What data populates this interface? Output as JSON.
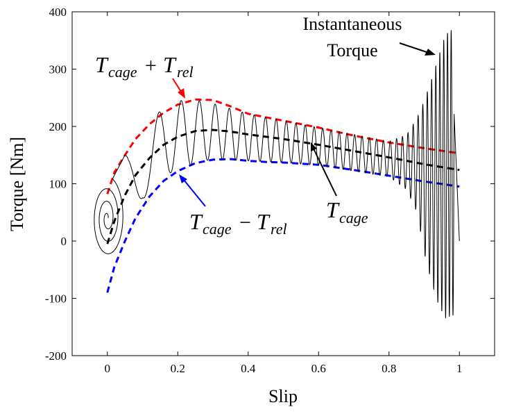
{
  "chart_data": {
    "type": "line",
    "title": "",
    "xlabel": "Slip",
    "ylabel": "Torque [Nm]",
    "xlim": [
      -0.1,
      1.1
    ],
    "ylim": [
      -200,
      400
    ],
    "xticks": [
      "0",
      "0.2",
      "0.4",
      "0.6",
      "0.8",
      "1"
    ],
    "yticks": [
      "-200",
      "-100",
      "0",
      "100",
      "200",
      "300",
      "400"
    ],
    "grid": false,
    "legend": "none",
    "series": [
      {
        "id": "cage_plus_rel",
        "color": "#ff0000",
        "style": "dashed",
        "x": [
          0,
          0.02,
          0.05,
          0.08,
          0.12,
          0.16,
          0.2,
          0.25,
          0.3,
          0.35,
          0.4,
          0.45,
          0.5,
          0.6,
          0.7,
          0.8,
          0.9,
          1.0
        ],
        "y": [
          82,
          120,
          150,
          178,
          204,
          224,
          238,
          247,
          246,
          235,
          222,
          216,
          210,
          198,
          184,
          172,
          162,
          153
        ]
      },
      {
        "id": "cage",
        "color": "#000000",
        "style": "dashed",
        "x": [
          0,
          0.02,
          0.05,
          0.08,
          0.12,
          0.16,
          0.2,
          0.25,
          0.3,
          0.35,
          0.4,
          0.45,
          0.5,
          0.6,
          0.7,
          0.8,
          0.9,
          1.0
        ],
        "y": [
          -5,
          35,
          80,
          115,
          145,
          168,
          182,
          192,
          194,
          191,
          186,
          182,
          178,
          168,
          157,
          146,
          134,
          124
        ]
      },
      {
        "id": "cage_minus_rel",
        "color": "#0000ff",
        "style": "dashed",
        "x": [
          0,
          0.02,
          0.05,
          0.08,
          0.12,
          0.16,
          0.2,
          0.25,
          0.3,
          0.35,
          0.4,
          0.45,
          0.5,
          0.6,
          0.7,
          0.8,
          0.9,
          1.0
        ],
        "y": [
          -90,
          -45,
          0,
          40,
          78,
          105,
          122,
          136,
          142,
          143,
          140,
          138,
          137,
          133,
          124,
          114,
          104,
          95
        ]
      },
      {
        "id": "instantaneous",
        "color": "#000000",
        "style": "solid",
        "envelope_upper": {
          "x": [
            0.06,
            0.1,
            0.15,
            0.2,
            0.25,
            0.3,
            0.4,
            0.5,
            0.6,
            0.7,
            0.8,
            0.85,
            0.88,
            0.9,
            0.92,
            0.94,
            0.96,
            0.98
          ],
          "y": [
            150,
            178,
            228,
            245,
            246,
            240,
            222,
            210,
            198,
            186,
            174,
            185,
            215,
            245,
            280,
            320,
            360,
            370
          ]
        },
        "envelope_lower": {
          "x": [
            0.06,
            0.1,
            0.15,
            0.2,
            0.25,
            0.3,
            0.4,
            0.5,
            0.6,
            0.7,
            0.8,
            0.85,
            0.88,
            0.9,
            0.92,
            0.94,
            0.96,
            0.98
          ],
          "y": [
            -15,
            72,
            110,
            125,
            136,
            143,
            140,
            137,
            132,
            122,
            112,
            90,
            50,
            -20,
            -70,
            -110,
            -135,
            -130
          ]
        },
        "start_spiral_center": [
          0.0,
          40
        ]
      }
    ],
    "annotations": {
      "instantaneous": {
        "line1": "Instantaneous",
        "line2": "Torque"
      },
      "cage_plus_rel": {
        "T": "T",
        "sub1": "cage",
        "op": "+",
        "T2": "T",
        "sub2": "rel"
      },
      "cage_minus_rel": {
        "T": "T",
        "sub1": "cage",
        "op": "−",
        "T2": "T",
        "sub2": "rel"
      },
      "cage": {
        "T": "T",
        "sub": "cage"
      }
    },
    "colors": {
      "red": "#ff0000",
      "blue": "#0000ff",
      "black": "#000000"
    }
  }
}
